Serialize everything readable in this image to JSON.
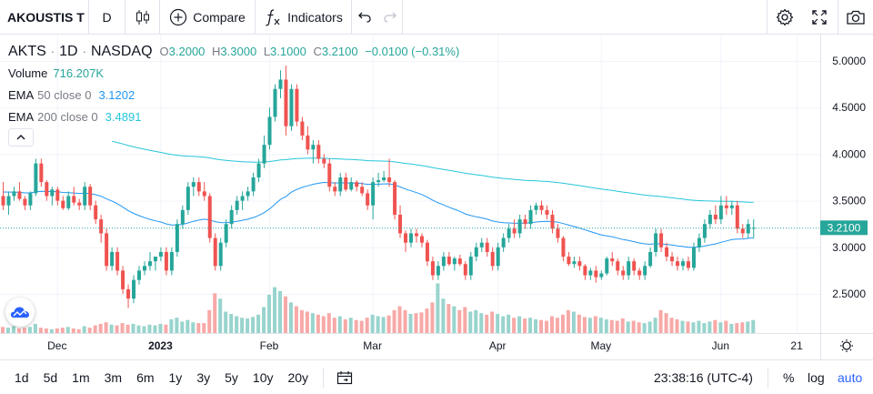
{
  "toolbar": {
    "symbol": "AKOUSTIS T",
    "interval": "D",
    "compare_label": "Compare",
    "indicators_label": "Indicators"
  },
  "legend": {
    "symbol": "AKTS",
    "interval": "1D",
    "exchange": "NASDAQ",
    "dot": "·",
    "o_label": "O",
    "o_value": "3.2000",
    "h_label": "H",
    "h_value": "3.3000",
    "l_label": "L",
    "l_value": "3.1000",
    "c_label": "C",
    "c_value": "3.2100",
    "change": "−0.0100 (−0.31%)",
    "volume_label": "Volume",
    "volume_value": "716.207K",
    "ema50_label": "EMA",
    "ema50_params": "50 close 0",
    "ema50_value": "3.1202",
    "ema200_label": "EMA",
    "ema200_params": "200 close 0",
    "ema200_value": "3.4891"
  },
  "price_axis": {
    "ticks": [
      "5.0000",
      "4.5000",
      "4.0000",
      "3.5000",
      "3.0000",
      "2.5000"
    ],
    "tick_values": [
      5.0,
      4.5,
      4.0,
      3.5,
      3.0,
      2.5
    ],
    "last_price_label": "3.2100",
    "last_price": 3.21
  },
  "time_axis": {
    "labels": [
      {
        "text": "Dec",
        "bar": 10,
        "bold": false
      },
      {
        "text": "2023",
        "bar": 29,
        "bold": true
      },
      {
        "text": "Feb",
        "bar": 49,
        "bold": false
      },
      {
        "text": "Mar",
        "bar": 68,
        "bold": false
      },
      {
        "text": "Apr",
        "bar": 91,
        "bold": false
      },
      {
        "text": "May",
        "bar": 110,
        "bold": false
      },
      {
        "text": "Jun",
        "bar": 132,
        "bold": false
      },
      {
        "text": "21",
        "bar": 146,
        "bold": false
      }
    ]
  },
  "bottom": {
    "ranges": [
      "1d",
      "5d",
      "1m",
      "3m",
      "6m",
      "1y",
      "3y",
      "5y",
      "10y",
      "20y"
    ],
    "time": "23:38:16 (UTC-4)",
    "percent": "%",
    "log": "log",
    "auto": "auto"
  },
  "colors": {
    "up": "#26a69a",
    "down": "#ef5350",
    "up_volume": "#98d4cd",
    "down_volume": "#f7a9a7",
    "ema50": "#2196f3",
    "ema200": "#26c6da",
    "accent": "#2962ff"
  },
  "chart_data": {
    "type": "candlestick",
    "price_range": [
      2.05,
      5.25
    ],
    "candles": [
      [
        3.55,
        3.7,
        3.4,
        3.45
      ],
      [
        3.45,
        3.6,
        3.35,
        3.55
      ],
      [
        3.55,
        3.65,
        3.5,
        3.6
      ],
      [
        3.6,
        3.7,
        3.5,
        3.52
      ],
      [
        3.52,
        3.55,
        3.4,
        3.45
      ],
      [
        3.45,
        3.6,
        3.4,
        3.58
      ],
      [
        3.58,
        3.95,
        3.55,
        3.9
      ],
      [
        3.9,
        3.95,
        3.65,
        3.7
      ],
      [
        3.7,
        3.72,
        3.5,
        3.55
      ],
      [
        3.55,
        3.65,
        3.45,
        3.62
      ],
      [
        3.62,
        3.65,
        3.45,
        3.5
      ],
      [
        3.5,
        3.55,
        3.4,
        3.42
      ],
      [
        3.42,
        3.6,
        3.4,
        3.55
      ],
      [
        3.55,
        3.65,
        3.45,
        3.48
      ],
      [
        3.48,
        3.52,
        3.4,
        3.45
      ],
      [
        3.45,
        3.7,
        3.4,
        3.65
      ],
      [
        3.65,
        3.68,
        3.4,
        3.45
      ],
      [
        3.45,
        3.5,
        3.25,
        3.3
      ],
      [
        3.3,
        3.35,
        3.05,
        3.15
      ],
      [
        3.15,
        3.2,
        2.75,
        2.8
      ],
      [
        2.8,
        3.0,
        2.75,
        2.95
      ],
      [
        2.95,
        3.0,
        2.7,
        2.75
      ],
      [
        2.75,
        2.8,
        2.5,
        2.55
      ],
      [
        2.55,
        2.6,
        2.35,
        2.45
      ],
      [
        2.45,
        2.7,
        2.4,
        2.65
      ],
      [
        2.65,
        2.8,
        2.6,
        2.75
      ],
      [
        2.75,
        2.85,
        2.7,
        2.8
      ],
      [
        2.8,
        2.95,
        2.75,
        2.85
      ],
      [
        2.85,
        2.9,
        2.75,
        2.9
      ],
      [
        2.9,
        3.0,
        2.85,
        2.95
      ],
      [
        2.95,
        3.0,
        2.7,
        2.75
      ],
      [
        2.75,
        3.0,
        2.7,
        2.95
      ],
      [
        2.95,
        3.3,
        2.9,
        3.25
      ],
      [
        3.25,
        3.45,
        3.2,
        3.4
      ],
      [
        3.4,
        3.7,
        3.35,
        3.65
      ],
      [
        3.65,
        3.75,
        3.55,
        3.7
      ],
      [
        3.7,
        3.75,
        3.55,
        3.6
      ],
      [
        3.6,
        3.7,
        3.5,
        3.55
      ],
      [
        3.55,
        3.58,
        3.05,
        3.1
      ],
      [
        3.1,
        3.15,
        2.75,
        2.8
      ],
      [
        2.8,
        3.1,
        2.75,
        3.05
      ],
      [
        3.05,
        3.3,
        3.0,
        3.25
      ],
      [
        3.25,
        3.45,
        3.2,
        3.4
      ],
      [
        3.4,
        3.55,
        3.35,
        3.5
      ],
      [
        3.5,
        3.6,
        3.4,
        3.55
      ],
      [
        3.55,
        3.65,
        3.5,
        3.6
      ],
      [
        3.6,
        3.8,
        3.55,
        3.75
      ],
      [
        3.75,
        3.95,
        3.7,
        3.9
      ],
      [
        3.9,
        4.2,
        3.85,
        4.1
      ],
      [
        4.1,
        4.5,
        4.05,
        4.4
      ],
      [
        4.4,
        4.75,
        4.35,
        4.7
      ],
      [
        4.7,
        4.9,
        4.6,
        4.8
      ],
      [
        4.8,
        4.95,
        4.2,
        4.3
      ],
      [
        4.3,
        4.75,
        4.25,
        4.7
      ],
      [
        4.7,
        4.75,
        4.3,
        4.35
      ],
      [
        4.35,
        4.4,
        4.15,
        4.2
      ],
      [
        4.2,
        4.3,
        4.0,
        4.05
      ],
      [
        4.05,
        4.15,
        3.9,
        4.1
      ],
      [
        4.1,
        4.15,
        3.9,
        3.95
      ],
      [
        3.95,
        4.0,
        3.85,
        3.9
      ],
      [
        3.9,
        3.95,
        3.6,
        3.65
      ],
      [
        3.65,
        3.7,
        3.55,
        3.6
      ],
      [
        3.6,
        3.8,
        3.55,
        3.75
      ],
      [
        3.75,
        3.8,
        3.6,
        3.62
      ],
      [
        3.62,
        3.75,
        3.6,
        3.7
      ],
      [
        3.7,
        3.72,
        3.6,
        3.65
      ],
      [
        3.65,
        3.7,
        3.55,
        3.58
      ],
      [
        3.58,
        3.62,
        3.4,
        3.45
      ],
      [
        3.45,
        3.75,
        3.3,
        3.7
      ],
      [
        3.7,
        3.8,
        3.65,
        3.72
      ],
      [
        3.72,
        3.82,
        3.7,
        3.75
      ],
      [
        3.75,
        3.95,
        3.65,
        3.7
      ],
      [
        3.7,
        3.72,
        3.3,
        3.35
      ],
      [
        3.35,
        3.45,
        3.1,
        3.15
      ],
      [
        3.15,
        3.18,
        2.95,
        3.05
      ],
      [
        3.05,
        3.2,
        3.0,
        3.15
      ],
      [
        3.15,
        3.2,
        3.05,
        3.12
      ],
      [
        3.12,
        3.15,
        3.0,
        3.05
      ],
      [
        3.05,
        3.08,
        2.8,
        2.85
      ],
      [
        2.85,
        2.9,
        2.65,
        2.7
      ],
      [
        2.7,
        2.85,
        2.65,
        2.8
      ],
      [
        2.8,
        2.95,
        2.75,
        2.9
      ],
      [
        2.9,
        2.95,
        2.8,
        2.82
      ],
      [
        2.82,
        2.9,
        2.75,
        2.88
      ],
      [
        2.88,
        2.92,
        2.8,
        2.82
      ],
      [
        2.82,
        2.85,
        2.65,
        2.7
      ],
      [
        2.7,
        2.95,
        2.65,
        2.9
      ],
      [
        2.9,
        3.05,
        2.85,
        3.0
      ],
      [
        3.0,
        3.1,
        2.95,
        3.05
      ],
      [
        3.05,
        3.1,
        2.9,
        2.95
      ],
      [
        2.95,
        3.0,
        2.75,
        2.8
      ],
      [
        2.8,
        3.05,
        2.75,
        3.0
      ],
      [
        3.0,
        3.15,
        2.95,
        3.1
      ],
      [
        3.1,
        3.25,
        3.05,
        3.2
      ],
      [
        3.2,
        3.3,
        3.1,
        3.15
      ],
      [
        3.15,
        3.35,
        3.1,
        3.3
      ],
      [
        3.3,
        3.35,
        3.2,
        3.25
      ],
      [
        3.25,
        3.45,
        3.2,
        3.4
      ],
      [
        3.4,
        3.48,
        3.35,
        3.45
      ],
      [
        3.45,
        3.5,
        3.35,
        3.4
      ],
      [
        3.4,
        3.45,
        3.3,
        3.35
      ],
      [
        3.35,
        3.4,
        3.15,
        3.2
      ],
      [
        3.2,
        3.25,
        3.05,
        3.1
      ],
      [
        3.1,
        3.12,
        2.85,
        2.9
      ],
      [
        2.9,
        2.95,
        2.8,
        2.82
      ],
      [
        2.82,
        2.9,
        2.78,
        2.85
      ],
      [
        2.85,
        2.9,
        2.75,
        2.8
      ],
      [
        2.8,
        2.82,
        2.65,
        2.7
      ],
      [
        2.7,
        2.78,
        2.65,
        2.75
      ],
      [
        2.75,
        2.8,
        2.62,
        2.68
      ],
      [
        2.68,
        2.75,
        2.65,
        2.72
      ],
      [
        2.72,
        2.9,
        2.7,
        2.88
      ],
      [
        2.88,
        2.95,
        2.8,
        2.85
      ],
      [
        2.85,
        2.88,
        2.7,
        2.75
      ],
      [
        2.75,
        2.8,
        2.65,
        2.7
      ],
      [
        2.7,
        2.9,
        2.65,
        2.85
      ],
      [
        2.85,
        2.88,
        2.7,
        2.75
      ],
      [
        2.75,
        2.78,
        2.65,
        2.7
      ],
      [
        2.7,
        2.85,
        2.65,
        2.8
      ],
      [
        2.8,
        3.0,
        2.78,
        2.95
      ],
      [
        2.95,
        3.2,
        2.9,
        3.15
      ],
      [
        3.15,
        3.2,
        2.95,
        3.0
      ],
      [
        3.0,
        3.05,
        2.85,
        2.9
      ],
      [
        2.9,
        2.95,
        2.8,
        2.85
      ],
      [
        2.85,
        2.9,
        2.75,
        2.8
      ],
      [
        2.8,
        2.88,
        2.75,
        2.85
      ],
      [
        2.85,
        2.9,
        2.75,
        2.78
      ],
      [
        2.78,
        3.05,
        2.75,
        3.0
      ],
      [
        3.0,
        3.15,
        2.95,
        3.1
      ],
      [
        3.1,
        3.3,
        3.05,
        3.25
      ],
      [
        3.25,
        3.4,
        3.2,
        3.35
      ],
      [
        3.35,
        3.45,
        3.25,
        3.3
      ],
      [
        3.3,
        3.55,
        3.25,
        3.45
      ],
      [
        3.45,
        3.55,
        3.35,
        3.42
      ],
      [
        3.42,
        3.5,
        3.35,
        3.45
      ],
      [
        3.45,
        3.5,
        3.15,
        3.2
      ],
      [
        3.2,
        3.25,
        3.1,
        3.15
      ],
      [
        3.15,
        3.3,
        3.1,
        3.25
      ],
      [
        3.2,
        3.3,
        3.1,
        3.21
      ]
    ],
    "volumes": [
      0.08,
      0.07,
      0.09,
      0.06,
      0.07,
      0.08,
      0.12,
      0.07,
      0.06,
      0.05,
      0.06,
      0.07,
      0.08,
      0.06,
      0.05,
      0.09,
      0.07,
      0.1,
      0.12,
      0.14,
      0.11,
      0.1,
      0.13,
      0.11,
      0.12,
      0.1,
      0.09,
      0.11,
      0.1,
      0.12,
      0.11,
      0.18,
      0.2,
      0.15,
      0.17,
      0.14,
      0.13,
      0.13,
      0.3,
      0.52,
      0.45,
      0.28,
      0.25,
      0.22,
      0.2,
      0.19,
      0.21,
      0.24,
      0.34,
      0.5,
      0.6,
      0.55,
      0.48,
      0.4,
      0.35,
      0.3,
      0.28,
      0.26,
      0.24,
      0.22,
      0.26,
      0.2,
      0.22,
      0.18,
      0.2,
      0.17,
      0.16,
      0.2,
      0.24,
      0.22,
      0.21,
      0.23,
      0.3,
      0.35,
      0.3,
      0.25,
      0.26,
      0.27,
      0.32,
      0.4,
      0.65,
      0.45,
      0.38,
      0.35,
      0.3,
      0.34,
      0.28,
      0.3,
      0.26,
      0.24,
      0.28,
      0.25,
      0.22,
      0.24,
      0.2,
      0.22,
      0.19,
      0.2,
      0.18,
      0.17,
      0.16,
      0.22,
      0.2,
      0.24,
      0.3,
      0.28,
      0.24,
      0.21,
      0.2,
      0.22,
      0.2,
      0.18,
      0.17,
      0.16,
      0.19,
      0.15,
      0.16,
      0.14,
      0.13,
      0.15,
      0.2,
      0.3,
      0.26,
      0.2,
      0.18,
      0.16,
      0.15,
      0.14,
      0.16,
      0.13,
      0.15,
      0.17,
      0.14,
      0.16,
      0.12,
      0.13,
      0.14,
      0.15,
      0.17
    ]
  }
}
